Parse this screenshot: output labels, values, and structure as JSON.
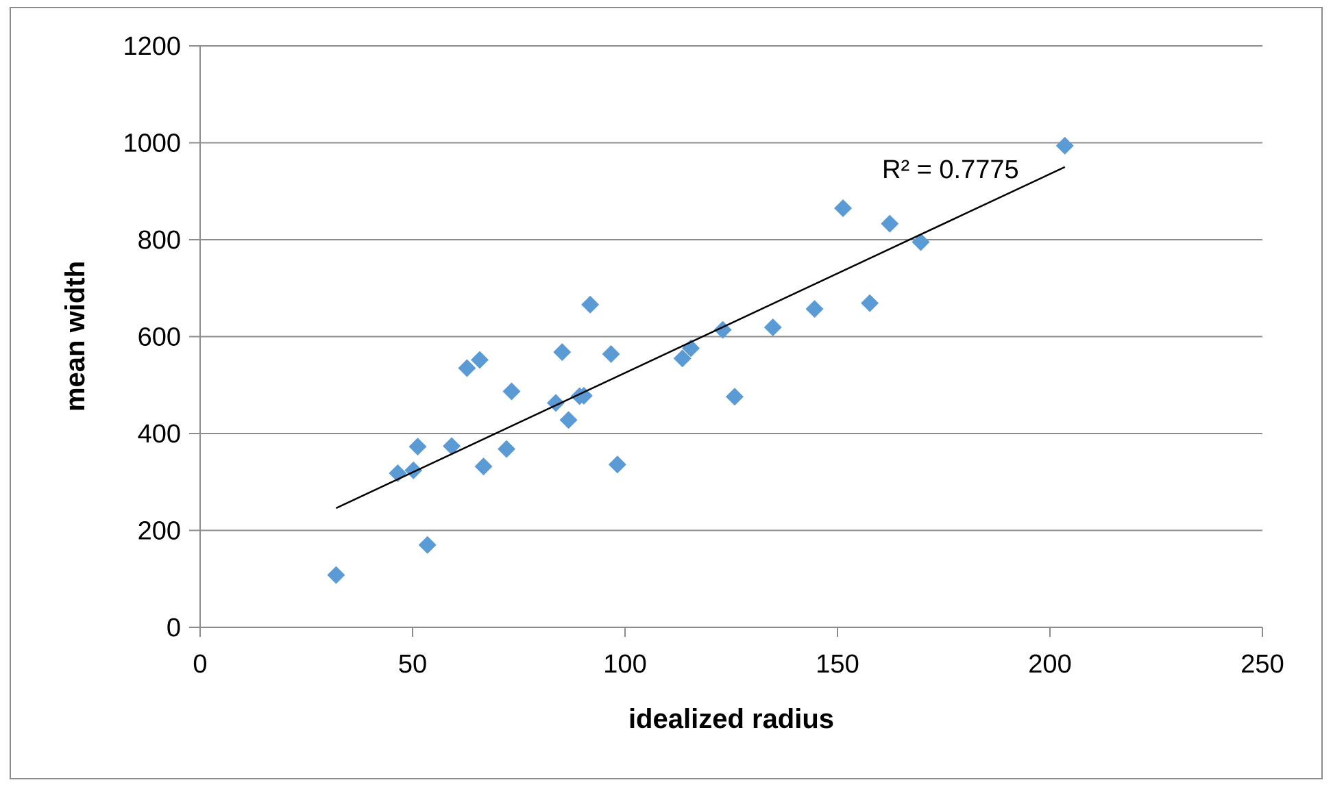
{
  "chart_data": {
    "type": "scatter",
    "title": "",
    "xlabel": "idealized radius",
    "ylabel": "mean width",
    "xlim": [
      0,
      250
    ],
    "ylim": [
      0,
      1200
    ],
    "x_ticks": [
      0,
      50,
      100,
      150,
      200,
      250
    ],
    "y_ticks": [
      0,
      200,
      400,
      600,
      800,
      1000,
      1200
    ],
    "grid": "horizontal",
    "legend": "none",
    "marker": "diamond",
    "colors": {
      "marker": "#5b9bd5",
      "trendline": "#000000",
      "gridline": "#8c8c8c",
      "frame": "#8c8c8c"
    },
    "series": [
      {
        "points": [
          {
            "x": 32,
            "y": 108
          },
          {
            "x": 46.5,
            "y": 318
          },
          {
            "x": 50.2,
            "y": 324
          },
          {
            "x": 51.2,
            "y": 373
          },
          {
            "x": 53.5,
            "y": 170
          },
          {
            "x": 59.2,
            "y": 374
          },
          {
            "x": 62.8,
            "y": 535
          },
          {
            "x": 65.8,
            "y": 552
          },
          {
            "x": 66.7,
            "y": 332
          },
          {
            "x": 72.1,
            "y": 368
          },
          {
            "x": 73.3,
            "y": 487
          },
          {
            "x": 83.7,
            "y": 463
          },
          {
            "x": 85.2,
            "y": 568
          },
          {
            "x": 86.7,
            "y": 428
          },
          {
            "x": 89.3,
            "y": 477
          },
          {
            "x": 90.3,
            "y": 478
          },
          {
            "x": 91.8,
            "y": 666
          },
          {
            "x": 96.7,
            "y": 564
          },
          {
            "x": 98.2,
            "y": 336
          },
          {
            "x": 113.5,
            "y": 555
          },
          {
            "x": 115.5,
            "y": 576
          },
          {
            "x": 123,
            "y": 614
          },
          {
            "x": 125.8,
            "y": 476
          },
          {
            "x": 134.8,
            "y": 619
          },
          {
            "x": 144.6,
            "y": 657
          },
          {
            "x": 151.3,
            "y": 865
          },
          {
            "x": 157.6,
            "y": 669
          },
          {
            "x": 162.3,
            "y": 833
          },
          {
            "x": 169.6,
            "y": 795
          },
          {
            "x": 203.5,
            "y": 994
          }
        ]
      }
    ],
    "trendline": {
      "type": "linear",
      "x_start": 32,
      "y_start": 246,
      "x_end": 203.5,
      "y_end": 950,
      "label": "R² = 0.7775"
    }
  }
}
